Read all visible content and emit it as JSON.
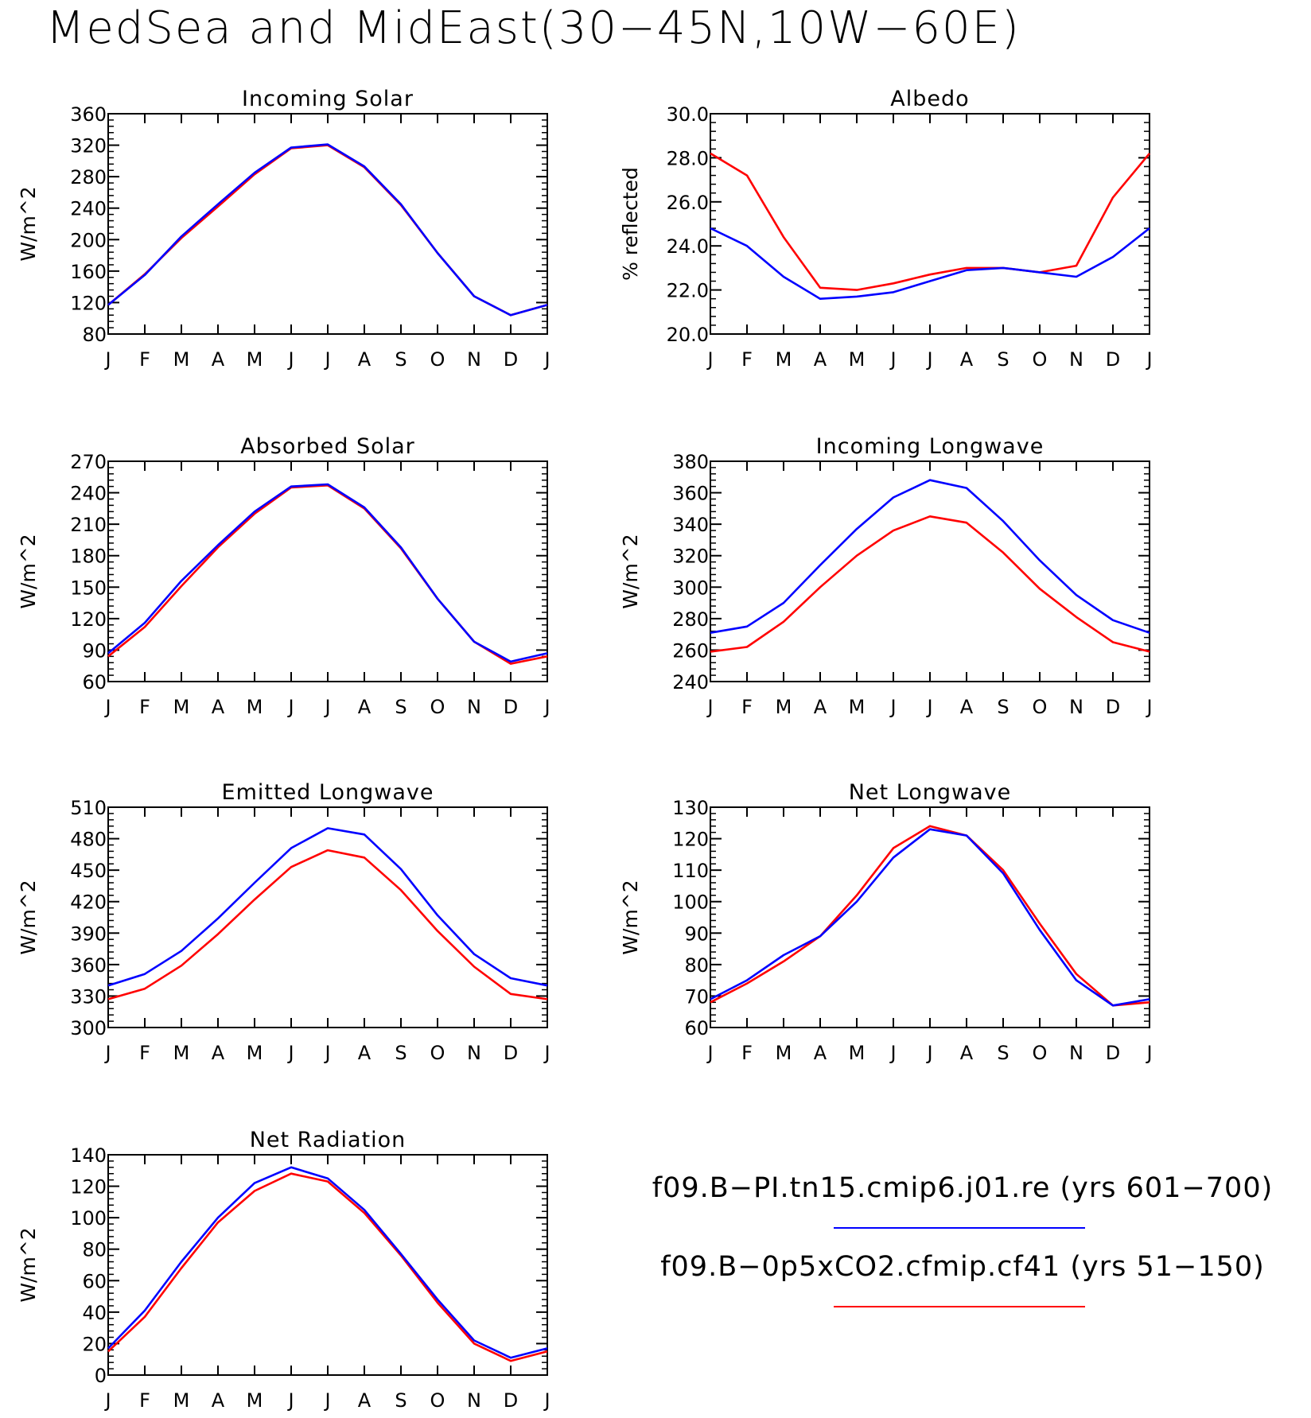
{
  "title": "MedSea and MidEast(30−45N,10W−60E)",
  "legend": [
    {
      "name": "f09.B−PI.tn15.cmip6.j01.re (yrs 601−700)",
      "color": "#0000ff"
    },
    {
      "name": "f09.B−0p5xCO2.cfmip.cf41 (yrs 51−150)",
      "color": "#ff0000"
    }
  ],
  "chart_data": [
    {
      "type": "line",
      "title": "Incoming Solar",
      "ylabel": "W/m^2",
      "x": [
        "J",
        "F",
        "M",
        "A",
        "M",
        "J",
        "J",
        "A",
        "S",
        "O",
        "N",
        "D",
        "J"
      ],
      "ylim": [
        80,
        360
      ],
      "yticks": [
        "80",
        "120",
        "160",
        "200",
        "240",
        "280",
        "320",
        "360"
      ],
      "series": [
        {
          "color": "#ff0000",
          "values": [
            117,
            156,
            202,
            242,
            283,
            316,
            320,
            292,
            244,
            183,
            128,
            104,
            117
          ]
        },
        {
          "color": "#0000ff",
          "values": [
            117,
            155,
            204,
            245,
            285,
            317,
            321,
            293,
            245,
            183,
            128,
            104,
            117
          ]
        }
      ]
    },
    {
      "type": "line",
      "title": "Albedo",
      "ylabel": "% reflected",
      "x": [
        "J",
        "F",
        "M",
        "A",
        "M",
        "J",
        "J",
        "A",
        "S",
        "O",
        "N",
        "D",
        "J"
      ],
      "ylim": [
        20,
        30
      ],
      "yticks": [
        "20.0",
        "22.0",
        "24.0",
        "26.0",
        "28.0",
        "30.0"
      ],
      "series": [
        {
          "color": "#ff0000",
          "values": [
            28.2,
            27.2,
            24.4,
            22.1,
            22.0,
            22.3,
            22.7,
            23.0,
            23.0,
            22.8,
            23.1,
            26.2,
            28.2
          ]
        },
        {
          "color": "#0000ff",
          "values": [
            24.8,
            24.0,
            22.6,
            21.6,
            21.7,
            21.9,
            22.4,
            22.9,
            23.0,
            22.8,
            22.6,
            23.5,
            24.8
          ]
        }
      ]
    },
    {
      "type": "line",
      "title": "Absorbed Solar",
      "ylabel": "W/m^2",
      "x": [
        "J",
        "F",
        "M",
        "A",
        "M",
        "J",
        "J",
        "A",
        "S",
        "O",
        "N",
        "D",
        "J"
      ],
      "ylim": [
        60,
        270
      ],
      "yticks": [
        "60",
        "90",
        "120",
        "150",
        "180",
        "210",
        "240",
        "270"
      ],
      "series": [
        {
          "color": "#ff0000",
          "values": [
            84,
            112,
            151,
            188,
            220,
            245,
            247,
            225,
            187,
            139,
            98,
            77,
            84
          ]
        },
        {
          "color": "#0000ff",
          "values": [
            87,
            116,
            156,
            190,
            222,
            246,
            248,
            226,
            188,
            139,
            98,
            79,
            87
          ]
        }
      ]
    },
    {
      "type": "line",
      "title": "Incoming Longwave",
      "ylabel": "W/m^2",
      "x": [
        "J",
        "F",
        "M",
        "A",
        "M",
        "J",
        "J",
        "A",
        "S",
        "O",
        "N",
        "D",
        "J"
      ],
      "ylim": [
        240,
        380
      ],
      "yticks": [
        "240",
        "260",
        "280",
        "300",
        "320",
        "340",
        "360",
        "380"
      ],
      "series": [
        {
          "color": "#ff0000",
          "values": [
            259,
            262,
            278,
            300,
            320,
            336,
            345,
            341,
            322,
            299,
            281,
            265,
            259
          ]
        },
        {
          "color": "#0000ff",
          "values": [
            271,
            275,
            290,
            314,
            337,
            357,
            368,
            363,
            342,
            317,
            295,
            279,
            271
          ]
        }
      ]
    },
    {
      "type": "line",
      "title": "Emitted Longwave",
      "ylabel": "W/m^2",
      "x": [
        "J",
        "F",
        "M",
        "A",
        "M",
        "J",
        "J",
        "A",
        "S",
        "O",
        "N",
        "D",
        "J"
      ],
      "ylim": [
        300,
        510
      ],
      "yticks": [
        "300",
        "330",
        "360",
        "390",
        "420",
        "450",
        "480",
        "510"
      ],
      "series": [
        {
          "color": "#ff0000",
          "values": [
            327,
            337,
            359,
            389,
            422,
            453,
            469,
            462,
            431,
            392,
            358,
            332,
            327
          ]
        },
        {
          "color": "#0000ff",
          "values": [
            340,
            351,
            373,
            404,
            438,
            471,
            490,
            484,
            451,
            407,
            370,
            347,
            340
          ]
        }
      ]
    },
    {
      "type": "line",
      "title": "Net Longwave",
      "ylabel": "W/m^2",
      "x": [
        "J",
        "F",
        "M",
        "A",
        "M",
        "J",
        "J",
        "A",
        "S",
        "O",
        "N",
        "D",
        "J"
      ],
      "ylim": [
        60,
        130
      ],
      "yticks": [
        "60",
        "70",
        "80",
        "90",
        "100",
        "110",
        "120",
        "130"
      ],
      "series": [
        {
          "color": "#ff0000",
          "values": [
            68,
            74,
            81,
            89,
            102,
            117,
            124,
            121,
            110,
            93,
            77,
            67,
            68
          ]
        },
        {
          "color": "#0000ff",
          "values": [
            69,
            75,
            83,
            89,
            100,
            114,
            123,
            121,
            109,
            91,
            75,
            67,
            69
          ]
        }
      ]
    },
    {
      "type": "line",
      "title": "Net Radiation",
      "ylabel": "W/m^2",
      "x": [
        "J",
        "F",
        "M",
        "A",
        "M",
        "J",
        "J",
        "A",
        "S",
        "O",
        "N",
        "D",
        "J"
      ],
      "ylim": [
        0,
        140
      ],
      "yticks": [
        "0",
        "20",
        "40",
        "60",
        "80",
        "100",
        "120",
        "140"
      ],
      "series": [
        {
          "color": "#ff0000",
          "values": [
            15,
            37,
            68,
            97,
            117,
            128,
            123,
            103,
            76,
            46,
            20,
            9,
            15
          ]
        },
        {
          "color": "#0000ff",
          "values": [
            17,
            41,
            72,
            100,
            122,
            132,
            125,
            105,
            77,
            48,
            22,
            11,
            17
          ]
        }
      ]
    }
  ]
}
